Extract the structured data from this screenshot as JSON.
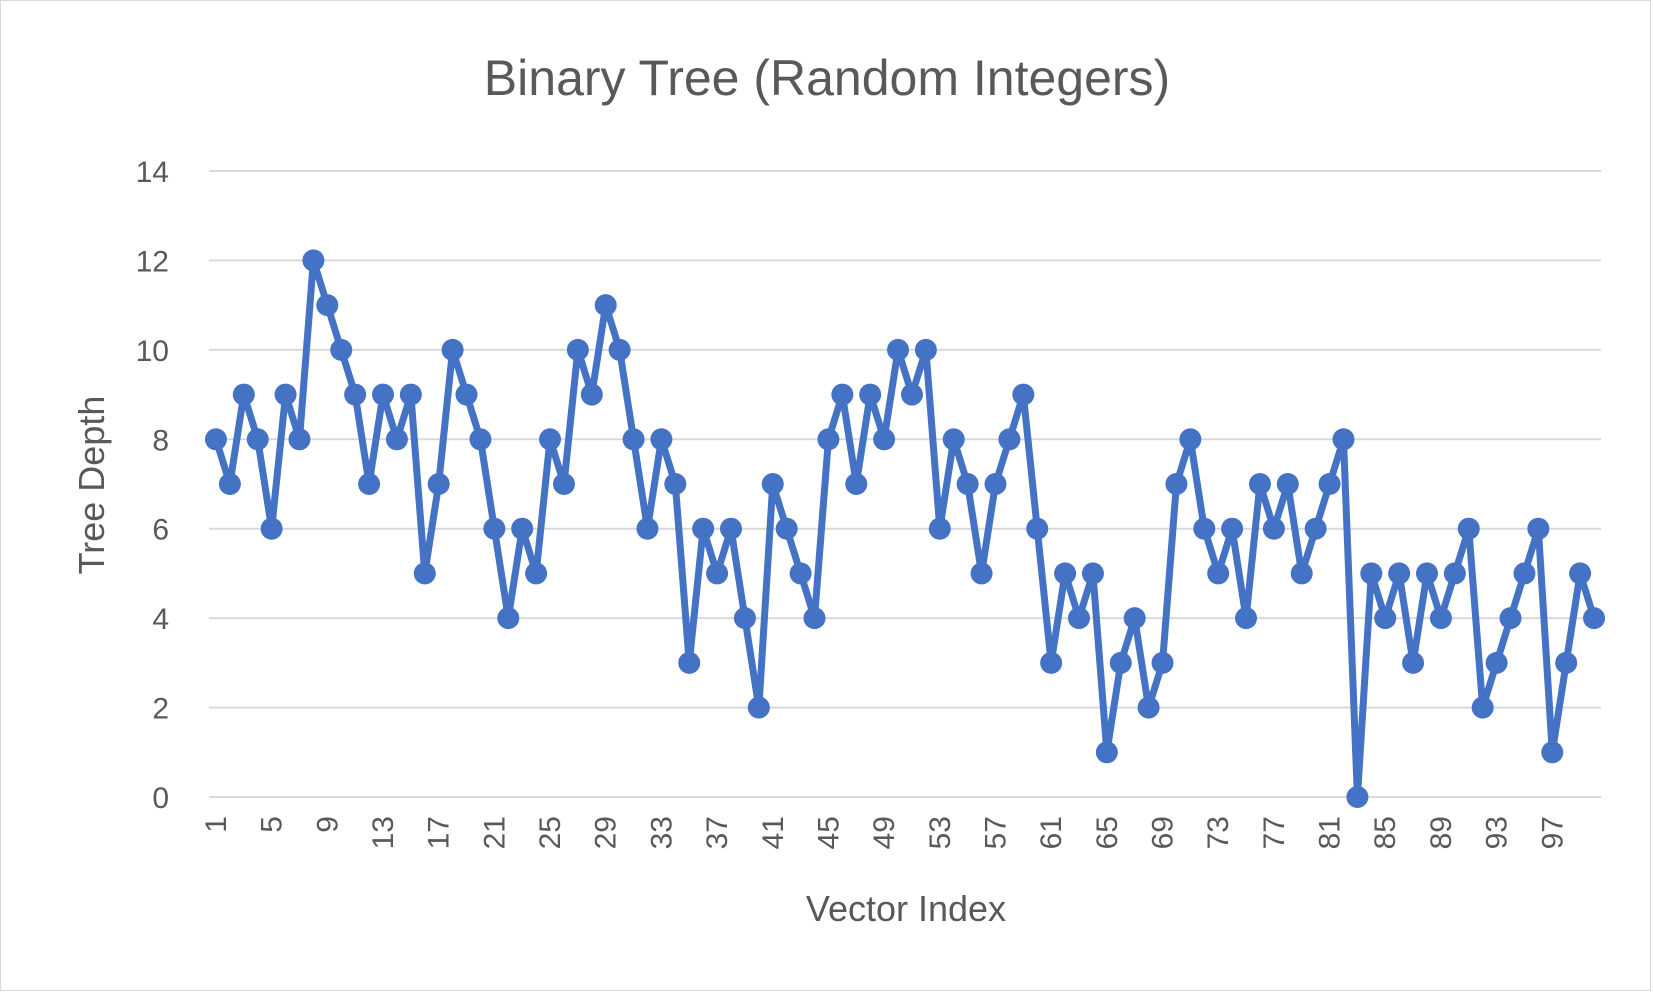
{
  "chart_data": {
    "type": "line",
    "title": "Binary Tree (Random Integers)",
    "xlabel": "Vector Index",
    "ylabel": "Tree Depth",
    "ylim": [
      0,
      14
    ],
    "yticks": [
      0,
      2,
      4,
      6,
      8,
      10,
      12,
      14
    ],
    "xticks": [
      1,
      5,
      9,
      13,
      17,
      21,
      25,
      29,
      33,
      37,
      41,
      45,
      49,
      53,
      57,
      61,
      65,
      69,
      73,
      77,
      81,
      85,
      89,
      93,
      97
    ],
    "grid": true,
    "legend": "none",
    "marker": "circle",
    "color": "#4472C4",
    "x": [
      1,
      2,
      3,
      4,
      5,
      6,
      7,
      8,
      9,
      10,
      11,
      12,
      13,
      14,
      15,
      16,
      17,
      18,
      19,
      20,
      21,
      22,
      23,
      24,
      25,
      26,
      27,
      28,
      29,
      30,
      31,
      32,
      33,
      34,
      35,
      36,
      37,
      38,
      39,
      40,
      41,
      42,
      43,
      44,
      45,
      46,
      47,
      48,
      49,
      50,
      51,
      52,
      53,
      54,
      55,
      56,
      57,
      58,
      59,
      60,
      61,
      62,
      63,
      64,
      65,
      66,
      67,
      68,
      69,
      70,
      71,
      72,
      73,
      74,
      75,
      76,
      77,
      78,
      79,
      80,
      81,
      82,
      83,
      84,
      85,
      86,
      87,
      88,
      89,
      90,
      91,
      92,
      93,
      94,
      95,
      96,
      97,
      98,
      99,
      100
    ],
    "series": [
      {
        "values": [
          8,
          7,
          9,
          8,
          6,
          9,
          8,
          12,
          11,
          10,
          9,
          7,
          9,
          8,
          9,
          5,
          7,
          10,
          9,
          8,
          6,
          4,
          6,
          5,
          8,
          7,
          10,
          9,
          11,
          10,
          8,
          6,
          8,
          7,
          3,
          6,
          5,
          6,
          4,
          2,
          7,
          6,
          5,
          4,
          8,
          9,
          7,
          9,
          8,
          10,
          9,
          10,
          6,
          8,
          7,
          5,
          7,
          8,
          9,
          6,
          3,
          5,
          4,
          5,
          1,
          3,
          4,
          2,
          3,
          7,
          8,
          6,
          5,
          6,
          4,
          7,
          6,
          7,
          5,
          6,
          7,
          8,
          0,
          5,
          4,
          5,
          3,
          5,
          4,
          5,
          6,
          2,
          3,
          4,
          5,
          6,
          1,
          3,
          5,
          4
        ]
      }
    ]
  }
}
